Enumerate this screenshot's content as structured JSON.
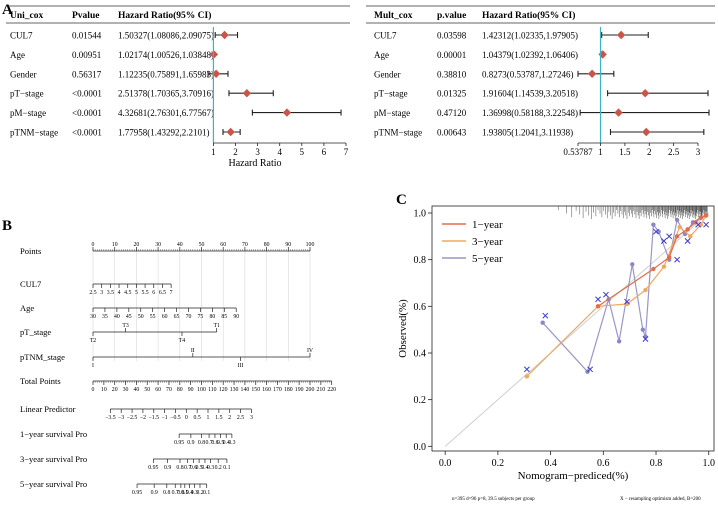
{
  "panel_labels": {
    "a": "A",
    "b": "B",
    "c": "C"
  },
  "colors": {
    "diamond": "#c8554a",
    "refline": "#3bb3c3",
    "line1": "#e06d4e",
    "line2": "#f0a85c",
    "line3": "#9a96c8",
    "cross": "#3a3ad0",
    "dot": "#8b87c8",
    "text": "#111111"
  },
  "chart_data": [
    {
      "type": "forest",
      "panel": "A-left",
      "headers": [
        "Uni_cox",
        "Pvalue",
        "Hazard Ratio(95% CI)"
      ],
      "rows": [
        {
          "var": "CUL7",
          "p": "0.01544",
          "ci_text": "1.50327(1.08086,2.09075)",
          "hr": 1.50327,
          "lo": 1.08086,
          "hi": 2.09075
        },
        {
          "var": "Age",
          "p": "0.00951",
          "ci_text": "1.02174(1.00526,1.03848)",
          "hr": 1.02174,
          "lo": 1.00526,
          "hi": 1.03848
        },
        {
          "var": "Gender",
          "p": "0.56317",
          "ci_text": "1.12235(0.75891,1.65983)",
          "hr": 1.12235,
          "lo": 0.75891,
          "hi": 1.65983
        },
        {
          "var": "pT−stage",
          "p": "<0.0001",
          "ci_text": "2.51378(1.70365,3.70916)",
          "hr": 2.51378,
          "lo": 1.70365,
          "hi": 3.70916
        },
        {
          "var": "pM−stage",
          "p": "<0.0001",
          "ci_text": "4.32681(2.76301,6.77567)",
          "hr": 4.32681,
          "lo": 2.76301,
          "hi": 6.77567
        },
        {
          "var": "pTNM−stage",
          "p": "<0.0001",
          "ci_text": "1.77958(1.43292,2.2101)",
          "hr": 1.77958,
          "lo": 1.43292,
          "hi": 2.2101
        }
      ],
      "xlim": [
        0.8,
        7
      ],
      "ticks": [
        "1",
        "2",
        "3",
        "4",
        "5",
        "6",
        "7"
      ],
      "tick_values": [
        1,
        2,
        3,
        4,
        5,
        6,
        7
      ],
      "xlabel": "Hazard Ratio",
      "refline": 1
    },
    {
      "type": "forest",
      "panel": "A-right",
      "headers": [
        "Mult_cox",
        "p.value",
        "Hazard Ratio(95% CI)"
      ],
      "rows": [
        {
          "var": "CUL7",
          "p": "0.03598",
          "ci_text": "1.42312(1.02335,1.97905)",
          "hr": 1.42312,
          "lo": 1.02335,
          "hi": 1.97905
        },
        {
          "var": "Age",
          "p": "0.00001",
          "ci_text": "1.04379(1.02392,1.06406)",
          "hr": 1.04379,
          "lo": 1.02392,
          "hi": 1.06406
        },
        {
          "var": "Gender",
          "p": "0.38810",
          "ci_text": "0.8273(0.53787,1.27246)",
          "hr": 0.8273,
          "lo": 0.53787,
          "hi": 1.27246
        },
        {
          "var": "pT−stage",
          "p": "0.01325",
          "ci_text": "1.91604(1.14539,3.20518)",
          "hr": 1.91604,
          "lo": 1.14539,
          "hi": 3.20518
        },
        {
          "var": "pM−stage",
          "p": "0.47120",
          "ci_text": "1.36998(0.58188,3.22548)",
          "hr": 1.36998,
          "lo": 0.58188,
          "hi": 3.22548
        },
        {
          "var": "pTNM−stage",
          "p": "0.00643",
          "ci_text": "1.93805(1.2041,3.11938)",
          "hr": 1.93805,
          "lo": 1.2041,
          "hi": 3.11938
        }
      ],
      "xlim": [
        0.53787,
        3.22548
      ],
      "ticks": [
        "0.53787",
        "1",
        "1.5",
        "2",
        "2.5",
        "3"
      ],
      "tick_values": [
        0.53787,
        1,
        1.5,
        2,
        2.5,
        3
      ],
      "refline": 1
    },
    {
      "type": "nomogram",
      "panel": "B",
      "scales": [
        {
          "label": "Points",
          "ticks": [
            {
              "v": 0,
              "t": "0"
            },
            {
              "v": 10,
              "t": "10"
            },
            {
              "v": 20,
              "t": "20"
            },
            {
              "v": 30,
              "t": "30"
            },
            {
              "v": 40,
              "t": "40"
            },
            {
              "v": 50,
              "t": "50"
            },
            {
              "v": 60,
              "t": "60"
            },
            {
              "v": 70,
              "t": "70"
            },
            {
              "v": 80,
              "t": "80"
            },
            {
              "v": 90,
              "t": "90"
            },
            {
              "v": 100,
              "t": "100"
            }
          ],
          "minor": 1,
          "top": true
        },
        {
          "label": "CUL7",
          "ticks": [
            {
              "v": 0,
              "t": "2.5"
            },
            {
              "v": 4,
              "t": "3"
            },
            {
              "v": 8,
              "t": "3.5"
            },
            {
              "v": 12,
              "t": "4"
            },
            {
              "v": 16,
              "t": "4.5"
            },
            {
              "v": 20,
              "t": "5"
            },
            {
              "v": 24,
              "t": "5.5"
            },
            {
              "v": 28,
              "t": "6"
            },
            {
              "v": 32,
              "t": "6.5"
            },
            {
              "v": 36,
              "t": "7"
            }
          ]
        },
        {
          "label": "Age",
          "ticks": [
            {
              "v": 0,
              "t": "30"
            },
            {
              "v": 5.5,
              "t": "35"
            },
            {
              "v": 11,
              "t": "40"
            },
            {
              "v": 16.5,
              "t": "45"
            },
            {
              "v": 22,
              "t": "50"
            },
            {
              "v": 27.5,
              "t": "55"
            },
            {
              "v": 33,
              "t": "60"
            },
            {
              "v": 38.5,
              "t": "65"
            },
            {
              "v": 44,
              "t": "70"
            },
            {
              "v": 49.5,
              "t": "75"
            },
            {
              "v": 55,
              "t": "80"
            },
            {
              "v": 60.5,
              "t": "85"
            },
            {
              "v": 66,
              "t": "90"
            }
          ]
        },
        {
          "label": "pT_stage",
          "ticks": [
            {
              "v": 0,
              "t": "T2",
              "pos": "below"
            },
            {
              "v": 15,
              "t": "T3",
              "pos": "above"
            },
            {
              "v": 41,
              "t": "T4",
              "pos": "below"
            },
            {
              "v": 57,
              "t": "T1",
              "pos": "above"
            }
          ]
        },
        {
          "label": "pTNM_stage",
          "ticks": [
            {
              "v": 0,
              "t": "I",
              "pos": "below"
            },
            {
              "v": 46,
              "t": "II",
              "pos": "above"
            },
            {
              "v": 68,
              "t": "III",
              "pos": "below"
            },
            {
              "v": 100,
              "t": "IV",
              "pos": "above"
            }
          ]
        },
        {
          "label": "Total Points",
          "ticks": [
            {
              "v": 0,
              "t": "0"
            },
            {
              "v": 5,
              "t": "10"
            },
            {
              "v": 10,
              "t": "20"
            },
            {
              "v": 15,
              "t": "30"
            },
            {
              "v": 20,
              "t": "40"
            },
            {
              "v": 25,
              "t": "50"
            },
            {
              "v": 30,
              "t": "60"
            },
            {
              "v": 35,
              "t": "70"
            },
            {
              "v": 40,
              "t": "80"
            },
            {
              "v": 45,
              "t": "90"
            },
            {
              "v": 50,
              "t": "100"
            },
            {
              "v": 55,
              "t": "110"
            },
            {
              "v": 60,
              "t": "120"
            },
            {
              "v": 65,
              "t": "130"
            },
            {
              "v": 70,
              "t": "140"
            },
            {
              "v": 75,
              "t": "150"
            },
            {
              "v": 80,
              "t": "160"
            },
            {
              "v": 85,
              "t": "170"
            },
            {
              "v": 90,
              "t": "180"
            },
            {
              "v": 95,
              "t": "190"
            },
            {
              "v": 100,
              "t": "200"
            },
            {
              "v": 105,
              "t": "210"
            },
            {
              "v": 110,
              "t": "220"
            }
          ],
          "minor": 1
        },
        {
          "label": "Linear Predictor",
          "ticks": [
            {
              "v": 8,
              "t": "−3.5"
            },
            {
              "v": 13,
              "t": "−3"
            },
            {
              "v": 18,
              "t": "−2.5"
            },
            {
              "v": 23,
              "t": "−2"
            },
            {
              "v": 28,
              "t": "−1.5"
            },
            {
              "v": 33,
              "t": "−1"
            },
            {
              "v": 38,
              "t": "−0.5"
            },
            {
              "v": 43,
              "t": "0"
            },
            {
              "v": 48,
              "t": "0.5"
            },
            {
              "v": 53,
              "t": "1"
            },
            {
              "v": 58,
              "t": "1.5"
            },
            {
              "v": 63,
              "t": "2"
            },
            {
              "v": 68,
              "t": "2.5"
            },
            {
              "v": 73,
              "t": "3"
            }
          ]
        },
        {
          "label": "1−year survival Pro",
          "ticks": [
            {
              "v": 39.7,
              "t": "0.95"
            },
            {
              "v": 45.1,
              "t": "0.9"
            },
            {
              "v": 50.0,
              "t": "0.8"
            },
            {
              "v": 53.5,
              "t": "0.7"
            },
            {
              "v": 56.2,
              "t": "0.6"
            },
            {
              "v": 58.8,
              "t": "0.5"
            },
            {
              "v": 61.4,
              "t": "0.4"
            },
            {
              "v": 64.0,
              "t": "0.3"
            }
          ]
        },
        {
          "label": "3−year survival Pro",
          "ticks": [
            {
              "v": 27.8,
              "t": "0.95"
            },
            {
              "v": 34.4,
              "t": "0.9"
            },
            {
              "v": 40.1,
              "t": "0.8"
            },
            {
              "v": 43.6,
              "t": "0.7"
            },
            {
              "v": 46.3,
              "t": "0.6"
            },
            {
              "v": 48.9,
              "t": "0.5"
            },
            {
              "v": 51.6,
              "t": "0.4"
            },
            {
              "v": 54.2,
              "t": "0.3"
            },
            {
              "v": 57.7,
              "t": "0.2"
            },
            {
              "v": 61.7,
              "t": "0.1"
            }
          ]
        },
        {
          "label": "5−year survival Pro",
          "ticks": [
            {
              "v": 20.3,
              "t": "0.95"
            },
            {
              "v": 28.2,
              "t": "0.9"
            },
            {
              "v": 34.0,
              "t": "0.8"
            },
            {
              "v": 37.9,
              "t": "0.7"
            },
            {
              "v": 40.5,
              "t": "0.6"
            },
            {
              "v": 42.3,
              "t": "0.5"
            },
            {
              "v": 44.5,
              "t": "0.4"
            },
            {
              "v": 46.7,
              "t": "0.3"
            },
            {
              "v": 49.3,
              "t": "0.2"
            },
            {
              "v": 52.4,
              "t": "0.1"
            }
          ]
        }
      ]
    },
    {
      "type": "line",
      "panel": "C",
      "xlabel": "Nomogram−prediced(%)",
      "ylabel": "Observed(%)",
      "xlim": [
        -0.05,
        1.02
      ],
      "ylim": [
        -0.02,
        1.03
      ],
      "xticks": [
        "0.0",
        "0.2",
        "0.4",
        "0.6",
        "0.8",
        "1.0"
      ],
      "xtick_values": [
        0,
        0.2,
        0.4,
        0.6,
        0.8,
        1.0
      ],
      "yticks": [
        "0.0",
        "0.2",
        "0.4",
        "0.6",
        "0.8",
        "1.0"
      ],
      "ytick_values": [
        0,
        0.2,
        0.4,
        0.6,
        0.8,
        1.0
      ],
      "legend": [
        "1−year",
        "3−year",
        "5−year"
      ],
      "series": [
        {
          "name": "1−year",
          "x": [
            0.58,
            0.79,
            0.85,
            0.88,
            0.92,
            0.95,
            0.97,
            0.99
          ],
          "y": [
            0.6,
            0.76,
            0.81,
            0.9,
            0.93,
            0.96,
            0.98,
            0.99
          ]
        },
        {
          "name": "3−year",
          "x": [
            0.31,
            0.58,
            0.69,
            0.76,
            0.83,
            0.89,
            0.93,
            0.97,
            0.99
          ],
          "y": [
            0.3,
            0.6,
            0.61,
            0.67,
            0.77,
            0.94,
            0.9,
            0.95,
            0.99
          ]
        },
        {
          "name": "5−year",
          "x": [
            0.37,
            0.54,
            0.62,
            0.66,
            0.71,
            0.75,
            0.76,
            0.79,
            0.81,
            0.85,
            0.88,
            0.91,
            0.94,
            0.97
          ],
          "y": [
            0.53,
            0.32,
            0.63,
            0.45,
            0.78,
            0.5,
            0.47,
            0.95,
            0.92,
            0.8,
            0.97,
            0.91,
            0.96,
            0.98
          ]
        }
      ],
      "crosses": [
        {
          "x": [
            0.31,
            0.38,
            0.55,
            0.58,
            0.61,
            0.69,
            0.76,
            0.8,
            0.83,
            0.85,
            0.88,
            0.92,
            0.96,
            0.99
          ],
          "y": [
            0.33,
            0.56,
            0.33,
            0.63,
            0.65,
            0.62,
            0.46,
            0.92,
            0.88,
            0.9,
            0.8,
            0.88,
            0.95,
            0.95
          ]
        }
      ],
      "footnote_left": "n=395 d=96 p=8, 39.5 subjects per group",
      "footnote_right": "X − resampling optimism added, B=200"
    }
  ]
}
